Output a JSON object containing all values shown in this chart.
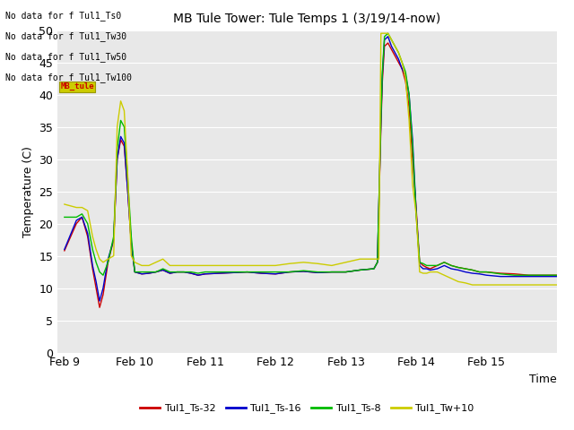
{
  "title": "MB Tule Tower: Tule Temps 1 (3/19/14-now)",
  "xlabel": "Time",
  "ylabel": "Temperature (C)",
  "ylim": [
    0,
    50
  ],
  "yticks": [
    0,
    5,
    10,
    15,
    20,
    25,
    30,
    35,
    40,
    45,
    50
  ],
  "background_color": "#e8e8e8",
  "fig_facecolor": "#ffffff",
  "no_data_lines": [
    "No data for f Tul1_Ts0",
    "No data for f Tul1_Tw30",
    "No data for f Tul1_Tw50",
    "No data for f Tul1_Tw100"
  ],
  "legend_entries": [
    {
      "label": "Tul1_Ts-32",
      "color": "#cc0000"
    },
    {
      "label": "Tul1_Ts-16",
      "color": "#0000cc"
    },
    {
      "label": "Tul1_Ts-8",
      "color": "#00bb00"
    },
    {
      "label": "Tul1_Tw+10",
      "color": "#cccc00"
    }
  ],
  "xtick_positions": [
    0.0,
    1.0,
    2.0,
    3.0,
    4.0,
    5.0,
    6.0,
    7.0
  ],
  "xtick_labels": [
    "Feb 9",
    "Feb 10",
    "Feb 11",
    "Feb 12",
    "Feb 13",
    "Feb 14",
    "Feb 15",
    ""
  ],
  "plot_xlim": [
    -0.1,
    7.0
  ],
  "series": {
    "Tul1_Ts-32": {
      "color": "#cc0000",
      "x": [
        0.0,
        0.17,
        0.25,
        0.33,
        0.4,
        0.45,
        0.5,
        0.55,
        0.62,
        0.7,
        0.75,
        0.8,
        0.85,
        0.9,
        0.95,
        1.0,
        1.1,
        1.2,
        1.3,
        1.4,
        1.5,
        1.6,
        1.7,
        1.8,
        1.9,
        2.0,
        2.2,
        2.4,
        2.6,
        2.8,
        3.0,
        3.2,
        3.4,
        3.6,
        3.8,
        4.0,
        4.2,
        4.4,
        4.45,
        4.5,
        4.52,
        4.55,
        4.6,
        4.65,
        4.7,
        4.75,
        4.8,
        4.85,
        4.9,
        4.95,
        5.0,
        5.05,
        5.1,
        5.15,
        5.2,
        5.3,
        5.4,
        5.5,
        5.6,
        5.7,
        5.8,
        5.9,
        6.0,
        6.2,
        6.4,
        6.6,
        6.8,
        7.0
      ],
      "y": [
        15.8,
        20.0,
        21.0,
        18.0,
        13.0,
        10.0,
        7.0,
        9.0,
        14.0,
        17.5,
        30.0,
        33.0,
        32.0,
        25.0,
        17.0,
        12.5,
        12.2,
        12.3,
        12.5,
        12.8,
        12.3,
        12.5,
        12.5,
        12.3,
        12.0,
        12.2,
        12.3,
        12.4,
        12.5,
        12.3,
        12.2,
        12.5,
        12.6,
        12.4,
        12.5,
        12.5,
        12.8,
        13.0,
        14.0,
        35.0,
        42.0,
        47.5,
        48.0,
        47.0,
        46.0,
        45.0,
        44.0,
        42.0,
        38.0,
        30.0,
        22.5,
        14.0,
        13.5,
        13.2,
        13.0,
        13.5,
        14.0,
        13.5,
        13.2,
        13.0,
        12.8,
        12.5,
        12.5,
        12.3,
        12.2,
        12.0,
        12.0,
        12.0
      ]
    },
    "Tul1_Ts-16": {
      "color": "#0000cc",
      "x": [
        0.0,
        0.17,
        0.25,
        0.33,
        0.4,
        0.45,
        0.5,
        0.55,
        0.62,
        0.7,
        0.75,
        0.8,
        0.85,
        0.9,
        0.95,
        1.0,
        1.1,
        1.2,
        1.3,
        1.4,
        1.5,
        1.6,
        1.7,
        1.8,
        1.9,
        2.0,
        2.2,
        2.4,
        2.6,
        2.8,
        3.0,
        3.2,
        3.4,
        3.6,
        3.8,
        4.0,
        4.2,
        4.4,
        4.45,
        4.5,
        4.52,
        4.55,
        4.6,
        4.65,
        4.7,
        4.75,
        4.8,
        4.85,
        4.9,
        4.95,
        5.0,
        5.05,
        5.1,
        5.15,
        5.2,
        5.3,
        5.4,
        5.5,
        5.6,
        5.7,
        5.8,
        5.9,
        6.0,
        6.2,
        6.4,
        6.6,
        6.8,
        7.0
      ],
      "y": [
        16.0,
        20.5,
        21.0,
        18.5,
        13.5,
        11.0,
        8.0,
        10.0,
        14.5,
        17.5,
        30.0,
        33.5,
        32.5,
        25.0,
        17.0,
        12.5,
        12.2,
        12.3,
        12.5,
        12.8,
        12.3,
        12.5,
        12.5,
        12.3,
        12.0,
        12.2,
        12.3,
        12.4,
        12.5,
        12.3,
        12.2,
        12.5,
        12.6,
        12.4,
        12.5,
        12.5,
        12.8,
        13.0,
        14.0,
        36.0,
        43.0,
        48.5,
        49.0,
        47.5,
        46.5,
        45.5,
        44.0,
        43.0,
        40.0,
        33.0,
        22.0,
        13.5,
        13.0,
        13.0,
        12.8,
        13.0,
        13.5,
        13.0,
        12.8,
        12.5,
        12.3,
        12.2,
        12.0,
        11.8,
        11.8,
        11.8,
        11.8,
        11.8
      ]
    },
    "Tul1_Ts-8": {
      "color": "#00bb00",
      "x": [
        0.0,
        0.17,
        0.25,
        0.33,
        0.4,
        0.45,
        0.5,
        0.55,
        0.62,
        0.7,
        0.75,
        0.8,
        0.85,
        0.9,
        0.95,
        1.0,
        1.1,
        1.2,
        1.3,
        1.4,
        1.5,
        1.6,
        1.7,
        1.8,
        1.9,
        2.0,
        2.2,
        2.4,
        2.6,
        2.8,
        3.0,
        3.2,
        3.4,
        3.6,
        3.8,
        4.0,
        4.2,
        4.4,
        4.45,
        4.5,
        4.52,
        4.55,
        4.6,
        4.65,
        4.7,
        4.75,
        4.8,
        4.85,
        4.9,
        4.95,
        5.0,
        5.05,
        5.1,
        5.15,
        5.2,
        5.3,
        5.4,
        5.5,
        5.6,
        5.7,
        5.8,
        5.9,
        6.0,
        6.2,
        6.4,
        6.6,
        6.8,
        7.0
      ],
      "y": [
        21.0,
        21.0,
        21.5,
        20.0,
        16.0,
        14.0,
        12.5,
        12.0,
        14.0,
        18.0,
        31.5,
        36.0,
        35.0,
        27.0,
        18.0,
        12.5,
        12.5,
        12.5,
        12.5,
        13.0,
        12.5,
        12.5,
        12.5,
        12.5,
        12.3,
        12.5,
        12.5,
        12.5,
        12.5,
        12.5,
        12.5,
        12.5,
        12.7,
        12.5,
        12.5,
        12.5,
        12.8,
        13.0,
        14.0,
        36.5,
        43.5,
        49.0,
        49.5,
        48.5,
        47.5,
        46.5,
        45.0,
        43.5,
        40.0,
        32.0,
        21.5,
        14.0,
        13.8,
        13.5,
        13.5,
        13.5,
        14.0,
        13.5,
        13.2,
        13.0,
        12.8,
        12.5,
        12.5,
        12.2,
        12.0,
        12.0,
        12.0,
        12.0
      ]
    },
    "Tul1_Tw+10": {
      "color": "#cccc00",
      "x": [
        0.0,
        0.17,
        0.25,
        0.33,
        0.4,
        0.45,
        0.5,
        0.55,
        0.62,
        0.7,
        0.75,
        0.8,
        0.85,
        0.9,
        0.95,
        1.0,
        1.1,
        1.2,
        1.3,
        1.4,
        1.5,
        1.6,
        1.7,
        1.8,
        1.9,
        2.0,
        2.2,
        2.4,
        2.6,
        2.8,
        3.0,
        3.2,
        3.4,
        3.6,
        3.8,
        4.0,
        4.2,
        4.4,
        4.43,
        4.47,
        4.5,
        4.53,
        4.57,
        4.6,
        4.65,
        4.7,
        4.75,
        4.8,
        4.85,
        4.9,
        4.95,
        5.0,
        5.05,
        5.1,
        5.15,
        5.2,
        5.3,
        5.4,
        5.5,
        5.6,
        5.7,
        5.8,
        5.9,
        6.0,
        6.2,
        6.4,
        6.6,
        6.8,
        7.0
      ],
      "y": [
        23.0,
        22.5,
        22.5,
        22.0,
        18.0,
        16.0,
        14.5,
        14.0,
        14.5,
        15.0,
        35.0,
        39.0,
        37.5,
        27.5,
        15.0,
        14.0,
        13.5,
        13.5,
        14.0,
        14.5,
        13.5,
        13.5,
        13.5,
        13.5,
        13.5,
        13.5,
        13.5,
        13.5,
        13.5,
        13.5,
        13.5,
        13.8,
        14.0,
        13.8,
        13.5,
        14.0,
        14.5,
        14.5,
        14.5,
        14.5,
        49.5,
        49.5,
        49.5,
        49.5,
        48.5,
        47.5,
        46.5,
        45.0,
        42.5,
        36.0,
        26.0,
        21.5,
        12.5,
        12.3,
        12.3,
        12.5,
        12.5,
        12.0,
        11.5,
        11.0,
        10.8,
        10.5,
        10.5,
        10.5,
        10.5,
        10.5,
        10.5,
        10.5,
        10.5
      ]
    }
  }
}
